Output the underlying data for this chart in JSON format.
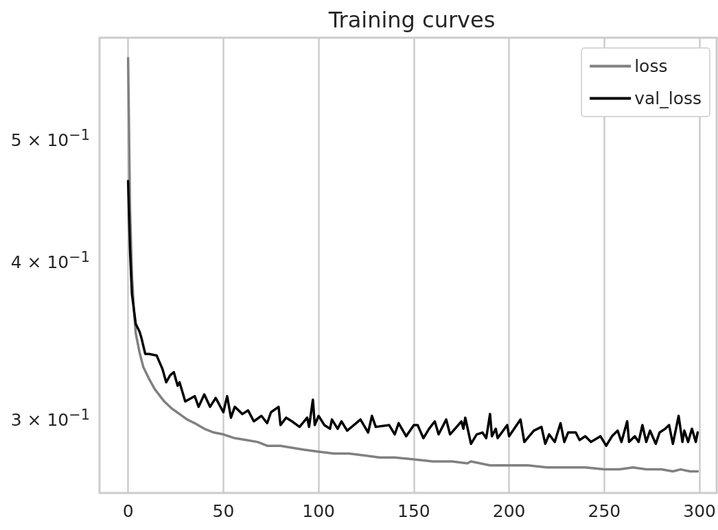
{
  "chart_data": {
    "type": "line",
    "title": "Training curves",
    "xlim": [
      -15,
      309
    ],
    "xticks": [
      0,
      50,
      100,
      150,
      200,
      250,
      300
    ],
    "ylim": [
      0.2615,
      0.6
    ],
    "yticks": [
      {
        "value": 0.3,
        "label": "3 × 10$^{−1}$"
      },
      {
        "value": 0.4,
        "label": "4 × 10$^{−1}$"
      },
      {
        "value": 0.5,
        "label": "5 × 10$^{−1}$"
      }
    ],
    "log": "y",
    "grid": "x",
    "legend": "top right",
    "marker": "none",
    "line_style": "solid",
    "series": [
      {
        "name": "loss",
        "color": "#808080",
        "x": [
          0,
          1,
          2,
          3,
          4,
          6,
          8,
          11,
          14,
          19,
          23,
          27,
          31,
          35,
          40,
          45,
          50,
          56,
          62,
          68,
          73,
          80,
          86,
          92,
          100,
          108,
          116,
          124,
          132,
          140,
          150,
          160,
          170,
          178,
          180,
          190,
          200,
          210,
          220,
          230,
          240,
          250,
          258,
          265,
          272,
          280,
          286,
          290,
          295,
          299
        ],
        "values": [
          0.578,
          0.44,
          0.39,
          0.366,
          0.35,
          0.338,
          0.329,
          0.322,
          0.316,
          0.309,
          0.305,
          0.302,
          0.299,
          0.297,
          0.294,
          0.292,
          0.291,
          0.289,
          0.288,
          0.287,
          0.285,
          0.285,
          0.284,
          0.283,
          0.282,
          0.281,
          0.281,
          0.28,
          0.279,
          0.279,
          0.278,
          0.277,
          0.277,
          0.276,
          0.277,
          0.275,
          0.275,
          0.275,
          0.274,
          0.274,
          0.274,
          0.273,
          0.273,
          0.274,
          0.273,
          0.273,
          0.272,
          0.273,
          0.272,
          0.272
        ]
      },
      {
        "name": "val_loss",
        "color": "#000000",
        "x": [
          0,
          1,
          2,
          4,
          6,
          7,
          9,
          11,
          15,
          18,
          20,
          22,
          24,
          26,
          27,
          30,
          35,
          37,
          40,
          43,
          46,
          50,
          52,
          54,
          56,
          60,
          63,
          66,
          70,
          73,
          75,
          79,
          80,
          83,
          86,
          90,
          94,
          95,
          97,
          98,
          100,
          103,
          106,
          107,
          110,
          112,
          115,
          122,
          126,
          128,
          130,
          137,
          140,
          142,
          146,
          150,
          152,
          155,
          158,
          161,
          163,
          167,
          169,
          175,
          176,
          177,
          180,
          183,
          186,
          188,
          190,
          191,
          193,
          194,
          199,
          200,
          206,
          208,
          213,
          217,
          219,
          221,
          224,
          227,
          229,
          231,
          235,
          237,
          240,
          243,
          248,
          251,
          254,
          257,
          259,
          262,
          263,
          266,
          268,
          270,
          272,
          274,
          277,
          279,
          282,
          284,
          286,
          289,
          291,
          292,
          294,
          296,
          298,
          299
        ],
        "values": [
          0.462,
          0.408,
          0.376,
          0.356,
          0.351,
          0.347,
          0.337,
          0.337,
          0.336,
          0.328,
          0.32,
          0.324,
          0.326,
          0.318,
          0.32,
          0.309,
          0.312,
          0.306,
          0.313,
          0.306,
          0.311,
          0.303,
          0.312,
          0.3,
          0.306,
          0.302,
          0.304,
          0.298,
          0.301,
          0.297,
          0.303,
          0.306,
          0.296,
          0.3,
          0.298,
          0.295,
          0.3,
          0.295,
          0.31,
          0.296,
          0.301,
          0.296,
          0.294,
          0.299,
          0.294,
          0.298,
          0.293,
          0.299,
          0.292,
          0.301,
          0.295,
          0.296,
          0.291,
          0.297,
          0.29,
          0.296,
          0.296,
          0.289,
          0.294,
          0.298,
          0.291,
          0.299,
          0.291,
          0.298,
          0.294,
          0.3,
          0.286,
          0.291,
          0.292,
          0.289,
          0.302,
          0.29,
          0.294,
          0.289,
          0.296,
          0.29,
          0.299,
          0.287,
          0.293,
          0.295,
          0.286,
          0.291,
          0.287,
          0.297,
          0.287,
          0.292,
          0.292,
          0.288,
          0.29,
          0.287,
          0.29,
          0.285,
          0.29,
          0.293,
          0.287,
          0.298,
          0.287,
          0.29,
          0.287,
          0.296,
          0.287,
          0.293,
          0.286,
          0.292,
          0.294,
          0.296,
          0.286,
          0.301,
          0.287,
          0.293,
          0.287,
          0.294,
          0.287,
          0.292
        ]
      }
    ]
  }
}
